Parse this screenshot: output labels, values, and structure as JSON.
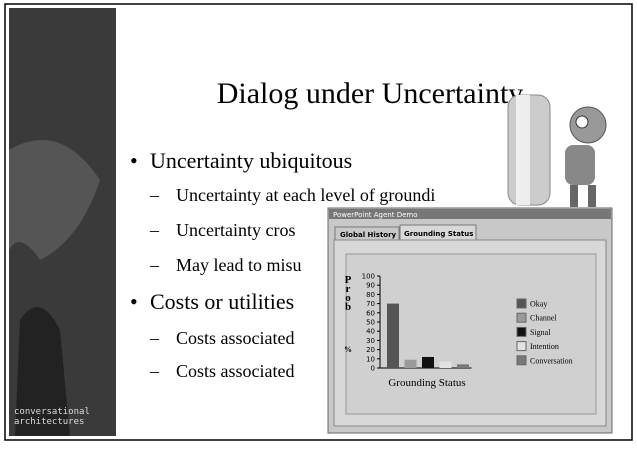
{
  "slide": {
    "title": "Dialog under Uncertainty",
    "logo": [
      "conversational",
      "architectures"
    ],
    "bullets": [
      {
        "level": 1,
        "text": "Uncertainty ubiquitous"
      },
      {
        "level": 2,
        "text": "Uncertainty at each level of groundi"
      },
      {
        "level": 2,
        "text": "Uncertainty cros"
      },
      {
        "level": 2,
        "text": "May lead to misu"
      },
      {
        "level": 1,
        "text": "Costs or utilities"
      },
      {
        "level": 2,
        "text": "Costs associated"
      },
      {
        "level": 2,
        "text": "Costs associated"
      }
    ],
    "bullet_marks": {
      "1": "•",
      "2": "–"
    }
  },
  "window": {
    "title": "PowerPoint Agent Demo",
    "tabs": [
      "Global History",
      "Grounding Status"
    ]
  },
  "chart_data": {
    "type": "bar",
    "ylabel": [
      "P",
      "r",
      "o",
      "b",
      "%"
    ],
    "xlabel": "Grounding Status",
    "categories": [
      "Okay",
      "Channel",
      "Signal",
      "Intention",
      "Conversation"
    ],
    "values": [
      70,
      9,
      12,
      7,
      4
    ],
    "colors": [
      "#555555",
      "#9a9a9a",
      "#111111",
      "#e2e2e2",
      "#787878"
    ],
    "ylim": [
      0,
      100
    ],
    "yticks": [
      0,
      10,
      20,
      30,
      40,
      50,
      60,
      70,
      80,
      90,
      100
    ]
  }
}
